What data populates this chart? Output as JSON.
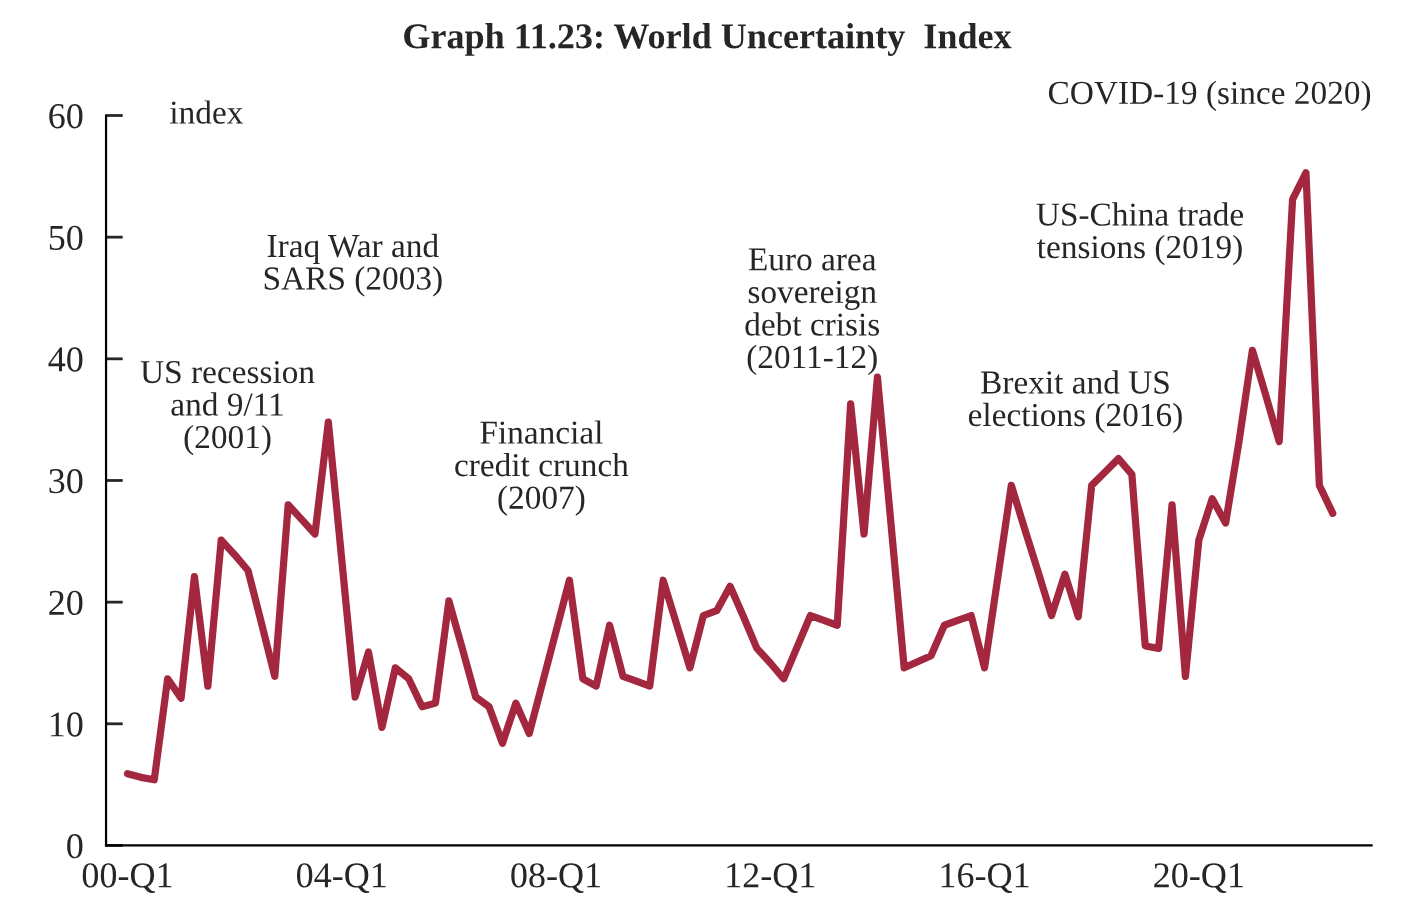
{
  "chart_data": {
    "type": "line",
    "title": "Graph 11.23: World Uncertainty  Index",
    "ylabel": "index",
    "categories": [
      "00-Q1",
      null,
      null,
      null,
      null,
      null,
      null,
      null,
      null,
      null,
      null,
      null,
      null,
      null,
      null,
      null,
      "04-Q1",
      null,
      null,
      null,
      null,
      null,
      null,
      null,
      null,
      null,
      null,
      null,
      null,
      null,
      null,
      null,
      "08-Q1",
      null,
      null,
      null,
      null,
      null,
      null,
      null,
      null,
      null,
      null,
      null,
      null,
      null,
      null,
      null,
      "12-Q1",
      null,
      null,
      null,
      null,
      null,
      null,
      null,
      null,
      null,
      null,
      null,
      null,
      null,
      null,
      null,
      "16-Q1",
      null,
      null,
      null,
      null,
      null,
      null,
      null,
      null,
      null,
      null,
      null,
      null,
      null,
      null,
      null,
      "20-Q1",
      null,
      null,
      null,
      null,
      null,
      null,
      null,
      null,
      null,
      null
    ],
    "series": [
      {
        "color": "#a3283f",
        "values": [
          5.9,
          5.6,
          5.4,
          13.7,
          12.1,
          22.1,
          13.1,
          25.1,
          23.9,
          22.6,
          18.3,
          13.9,
          28,
          26.8,
          25.6,
          34.8,
          23.5,
          12.2,
          15.9,
          9.7,
          14.6,
          13.7,
          11.4,
          11.7,
          20.1,
          16.2,
          12.2,
          11.4,
          8.4,
          11.7,
          9.2,
          13.4,
          17.6,
          21.8,
          13.7,
          13.1,
          18.1,
          13.9,
          13.5,
          13.1,
          21.8,
          18.2,
          14.6,
          18.9,
          19.3,
          21.3,
          18.8,
          16.2,
          15.0,
          13.7,
          16.3,
          18.9,
          18.5,
          18.1,
          36.3,
          25.6,
          38.5,
          26.6,
          14.6,
          15.1,
          15.6,
          18.1,
          18.5,
          18.9,
          14.6,
          22.1,
          29.6,
          26.0,
          22.5,
          18.9,
          22.3,
          18.8,
          29.6,
          30.7,
          31.8,
          30.5,
          16.4,
          16.2,
          28,
          13.9,
          25.1,
          28.5,
          26.5,
          33.2,
          40.7,
          37.0,
          33.2,
          53.1,
          55.3,
          29.6,
          27.3
        ]
      }
    ],
    "ylim": [
      0,
      60
    ],
    "yticks": [
      0,
      10,
      20,
      30,
      40,
      50,
      60
    ],
    "grid": false,
    "marker": "none",
    "line_style": "solid",
    "annotations": [
      "US recession\nand 9/11\n(2001)",
      "Iraq War and\nSARS (2003)",
      "Financial\ncredit crunch\n(2007)",
      "Euro area\nsovereign\ndebt crisis\n(2011-12)",
      "Brexit and US\nelections (2016)",
      "US-China trade\ntensions (2019)",
      "COVID-19 (since 2020)"
    ]
  }
}
